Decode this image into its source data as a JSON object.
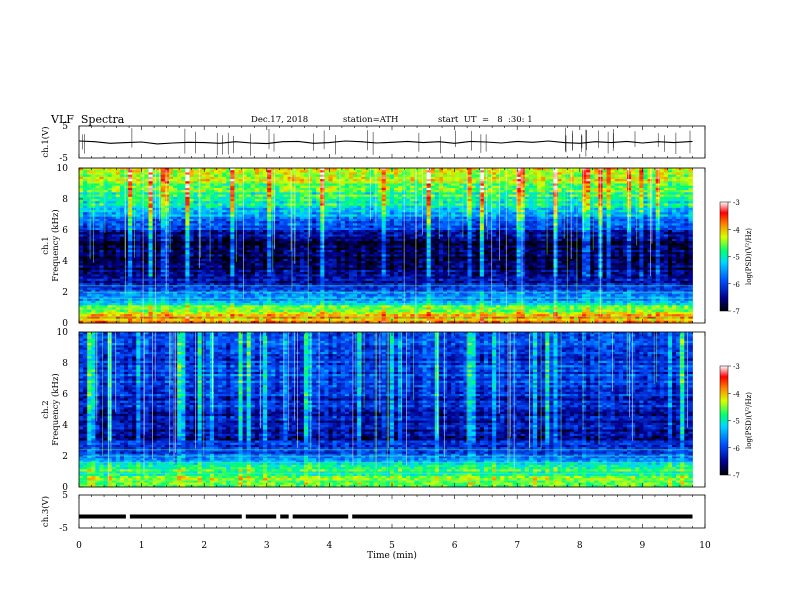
{
  "header": {
    "title": "VLF  Spectra",
    "date": "Dec.17, 2018",
    "station": "station=ATH",
    "start_ut": "start  UT  =   8  :30: 1"
  },
  "chart_data": {
    "type": "heatmap",
    "panels": [
      {
        "id": "ch1-waveform",
        "kind": "line",
        "ylabel": "ch.1(V)",
        "ylim": [
          -5,
          5
        ],
        "y_ticks": [
          "5",
          "-5"
        ],
        "x": [
          0,
          0.25,
          0.5,
          0.75,
          1,
          1.25,
          1.5,
          1.75,
          2,
          2.25,
          2.5,
          2.75,
          3,
          3.25,
          3.5,
          3.75,
          4,
          4.25,
          4.5,
          4.75,
          5,
          5.25,
          5.5,
          5.75,
          6,
          6.25,
          6.5,
          6.75,
          7,
          7.25,
          7.5,
          7.75,
          8,
          8.25,
          8.5,
          8.75,
          9,
          9.25,
          9.5,
          9.8
        ],
        "y": [
          0.3,
          0.1,
          -0.4,
          -0.2,
          0.0,
          -0.6,
          -0.3,
          -0.1,
          -0.2,
          -0.4,
          0.1,
          -0.3,
          -0.5,
          0.1,
          0.2,
          -0.4,
          -0.2,
          0.3,
          0.1,
          -0.3,
          -0.1,
          0.2,
          -0.2,
          0.1,
          -0.4,
          0.2,
          0.0,
          -0.3,
          0.2,
          -0.1,
          0.3,
          -0.2,
          -0.4,
          0.1,
          -0.2,
          0.2,
          -0.3,
          0.1,
          -0.2,
          0.2
        ]
      },
      {
        "id": "ch1-spectrogram",
        "kind": "heatmap",
        "ylabel_line1": "ch.1",
        "ylabel_line2": "Frequency  (kHz)",
        "ylim": [
          0,
          10
        ],
        "y_ticks": [
          "0",
          "2",
          "4",
          "6",
          "8",
          "10"
        ],
        "colorbar_label": "log(PSD)(V²/Hz)",
        "colorbar_range": [
          -7,
          -3
        ],
        "colorbar_ticks": [
          "-3",
          "-4",
          "-5",
          "-6",
          "-7"
        ],
        "band_levels": [
          {
            "freq": 0.5,
            "level": -4.0
          },
          {
            "freq": 1.5,
            "level": -5.4
          },
          {
            "freq": 2.5,
            "level": -6.3
          },
          {
            "freq": 3.5,
            "level": -6.7
          },
          {
            "freq": 4.5,
            "level": -6.8
          },
          {
            "freq": 5.5,
            "level": -6.6
          },
          {
            "freq": 6.5,
            "level": -5.8
          },
          {
            "freq": 7.5,
            "level": -5.1
          },
          {
            "freq": 8.5,
            "level": -4.7
          },
          {
            "freq": 9.5,
            "level": -4.3
          }
        ]
      },
      {
        "id": "ch2-spectrogram",
        "kind": "heatmap",
        "ylabel_line1": "ch.2",
        "ylabel_line2": "Frequency  (kHz)",
        "ylim": [
          0,
          10
        ],
        "y_ticks": [
          "0",
          "2",
          "4",
          "6",
          "8",
          "10"
        ],
        "colorbar_label": "log(PSD)(V²/Hz)",
        "colorbar_range": [
          -7,
          -3
        ],
        "colorbar_ticks": [
          "-3",
          "-4",
          "-5",
          "-6",
          "-7"
        ],
        "band_levels": [
          {
            "freq": 0.5,
            "level": -4.6
          },
          {
            "freq": 1.5,
            "level": -5.1
          },
          {
            "freq": 2.5,
            "level": -6.2
          },
          {
            "freq": 3.5,
            "level": -6.4
          },
          {
            "freq": 4.5,
            "level": -6.3
          },
          {
            "freq": 5.5,
            "level": -6.2
          },
          {
            "freq": 6.5,
            "level": -6.1
          },
          {
            "freq": 7.5,
            "level": -6.0
          },
          {
            "freq": 8.5,
            "level": -6.1
          },
          {
            "freq": 9.5,
            "level": -6.0
          }
        ]
      },
      {
        "id": "ch3-waveform",
        "kind": "line",
        "ylabel": "ch.3(V)",
        "ylim": [
          -5,
          5
        ],
        "y_ticks": [
          "5",
          "-5"
        ],
        "level": -1.5
      }
    ],
    "x_axis": {
      "label": "Time  (min)",
      "range": [
        0,
        10
      ],
      "data_end": 9.8,
      "ticks": [
        "0",
        "1",
        "2",
        "3",
        "4",
        "5",
        "6",
        "7",
        "8",
        "9",
        "10"
      ]
    }
  }
}
